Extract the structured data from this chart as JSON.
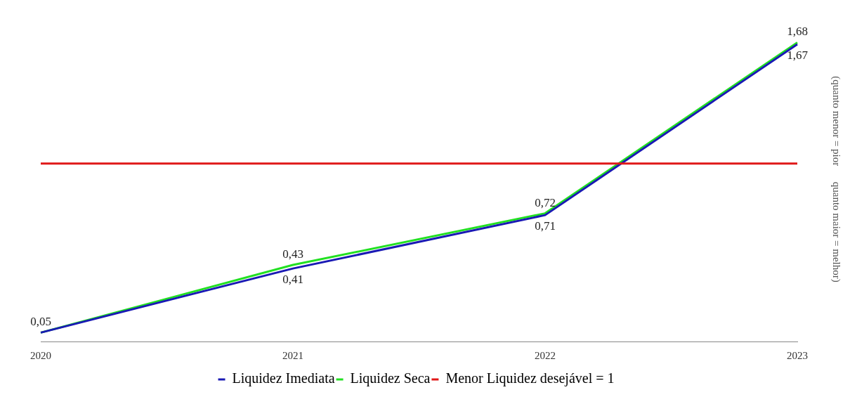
{
  "chart_data": {
    "type": "line",
    "categories": [
      "2020",
      "2021",
      "2022",
      "2023"
    ],
    "series": [
      {
        "name": "Liquidez Imediata",
        "color": "#1a1ab4",
        "values": [
          0.05,
          0.41,
          0.71,
          1.67
        ],
        "value_labels": [
          "0,05",
          "0,41",
          "0,71",
          "1,67"
        ]
      },
      {
        "name": "Liquidez Seca",
        "color": "#22e022",
        "values": [
          0.05,
          0.43,
          0.72,
          1.68
        ],
        "value_labels": [
          null,
          "0,43",
          "0,72",
          "1,68"
        ]
      }
    ],
    "ref_lines": [
      {
        "axis": "y",
        "value": 1,
        "label": "Menor Liquidez desejável = 1",
        "color": "#e01818"
      }
    ],
    "ylabel": "(quanto menor = pior      quanto maior = melhor)",
    "legend": "bottom",
    "grid": false,
    "marker": "none",
    "line_style": "solid"
  }
}
